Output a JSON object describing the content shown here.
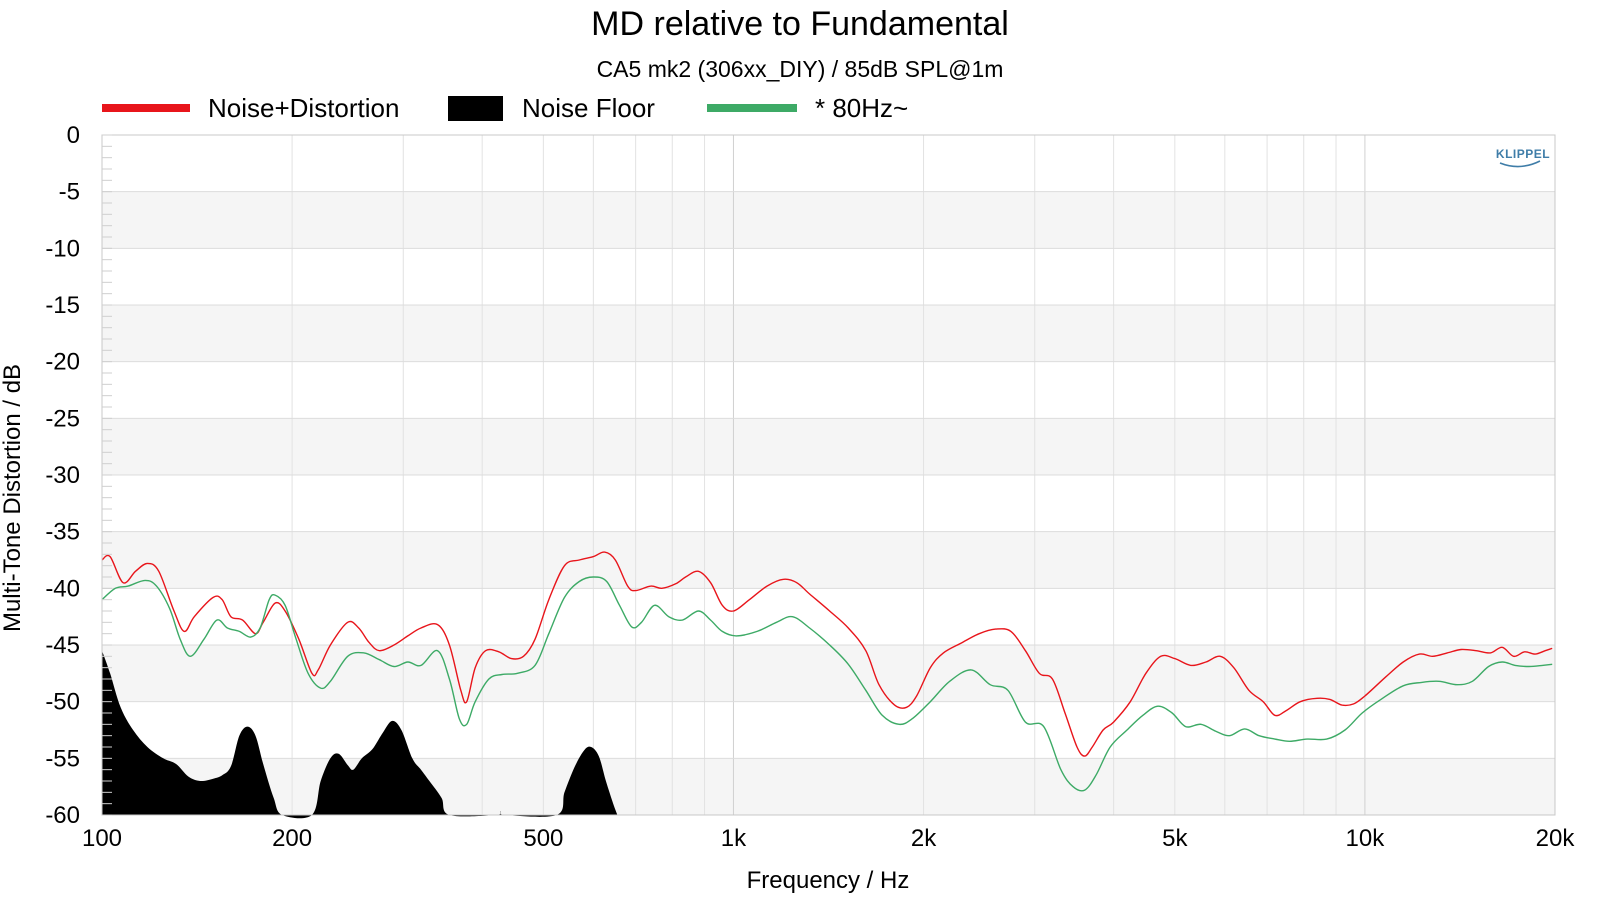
{
  "chart_data": {
    "type": "line",
    "title": "MD relative to Fundamental",
    "subtitle": "CA5 mk2 (306xx_DIY) / 85dB SPL@1m",
    "xlabel": "Frequency / Hz",
    "ylabel": "Multi-Tone Distortion / dB",
    "x_scale": "log",
    "xlim": [
      100,
      20000
    ],
    "ylim": [
      -60,
      0
    ],
    "x_ticks": [
      {
        "value": 100,
        "label": "100"
      },
      {
        "value": 200,
        "label": "200"
      },
      {
        "value": 500,
        "label": "500"
      },
      {
        "value": 1000,
        "label": "1k"
      },
      {
        "value": 2000,
        "label": "2k"
      },
      {
        "value": 5000,
        "label": "5k"
      },
      {
        "value": 10000,
        "label": "10k"
      },
      {
        "value": 20000,
        "label": "20k"
      }
    ],
    "y_ticks": [
      {
        "value": 0,
        "label": "0"
      },
      {
        "value": -5,
        "label": "-5"
      },
      {
        "value": -10,
        "label": "-10"
      },
      {
        "value": -15,
        "label": "-15"
      },
      {
        "value": -20,
        "label": "-20"
      },
      {
        "value": -25,
        "label": "-25"
      },
      {
        "value": -30,
        "label": "-30"
      },
      {
        "value": -35,
        "label": "-35"
      },
      {
        "value": -40,
        "label": "-40"
      },
      {
        "value": -45,
        "label": "-45"
      },
      {
        "value": -50,
        "label": "-50"
      },
      {
        "value": -55,
        "label": "-55"
      },
      {
        "value": -60,
        "label": "-60"
      }
    ],
    "grid": true,
    "legend_position": "top-left",
    "logo": "KLIPPEL",
    "series": [
      {
        "name": "Noise+Distortion",
        "style": "line",
        "color": "#e8151b",
        "points": [
          [
            100,
            -37.5
          ],
          [
            103,
            -37.2
          ],
          [
            108,
            -39.5
          ],
          [
            113,
            -38.5
          ],
          [
            118,
            -37.8
          ],
          [
            123,
            -38.5
          ],
          [
            130,
            -42
          ],
          [
            135,
            -43.8
          ],
          [
            140,
            -42.5
          ],
          [
            150,
            -40.8
          ],
          [
            155,
            -41
          ],
          [
            160,
            -42.5
          ],
          [
            167,
            -42.8
          ],
          [
            175,
            -44
          ],
          [
            180,
            -43
          ],
          [
            188,
            -41.3
          ],
          [
            195,
            -42
          ],
          [
            205,
            -44.5
          ],
          [
            215,
            -47.5
          ],
          [
            220,
            -47.2
          ],
          [
            230,
            -45
          ],
          [
            245,
            -43
          ],
          [
            255,
            -43.5
          ],
          [
            265,
            -44.8
          ],
          [
            275,
            -45.5
          ],
          [
            290,
            -45
          ],
          [
            305,
            -44.2
          ],
          [
            320,
            -43.5
          ],
          [
            340,
            -43.2
          ],
          [
            355,
            -45
          ],
          [
            370,
            -49
          ],
          [
            378,
            -50
          ],
          [
            390,
            -47
          ],
          [
            405,
            -45.5
          ],
          [
            425,
            -45.6
          ],
          [
            445,
            -46.2
          ],
          [
            465,
            -46
          ],
          [
            485,
            -44.5
          ],
          [
            510,
            -41
          ],
          [
            540,
            -38
          ],
          [
            570,
            -37.5
          ],
          [
            600,
            -37.2
          ],
          [
            625,
            -36.8
          ],
          [
            650,
            -37.5
          ],
          [
            680,
            -39.8
          ],
          [
            700,
            -40.2
          ],
          [
            740,
            -39.8
          ],
          [
            770,
            -40
          ],
          [
            810,
            -39.6
          ],
          [
            840,
            -39
          ],
          [
            880,
            -38.5
          ],
          [
            920,
            -39.5
          ],
          [
            960,
            -41.5
          ],
          [
            1000,
            -42
          ],
          [
            1060,
            -41
          ],
          [
            1130,
            -39.8
          ],
          [
            1200,
            -39.2
          ],
          [
            1260,
            -39.5
          ],
          [
            1320,
            -40.5
          ],
          [
            1420,
            -42
          ],
          [
            1520,
            -43.5
          ],
          [
            1620,
            -45.5
          ],
          [
            1700,
            -48.5
          ],
          [
            1800,
            -50.3
          ],
          [
            1880,
            -50.5
          ],
          [
            1950,
            -49.5
          ],
          [
            2050,
            -47
          ],
          [
            2150,
            -45.7
          ],
          [
            2300,
            -44.8
          ],
          [
            2450,
            -44
          ],
          [
            2600,
            -43.6
          ],
          [
            2750,
            -43.8
          ],
          [
            2900,
            -45.5
          ],
          [
            3050,
            -47.5
          ],
          [
            3200,
            -48
          ],
          [
            3350,
            -51
          ],
          [
            3500,
            -54
          ],
          [
            3600,
            -54.8
          ],
          [
            3700,
            -54
          ],
          [
            3850,
            -52.5
          ],
          [
            4000,
            -51.8
          ],
          [
            4250,
            -50
          ],
          [
            4500,
            -47.5
          ],
          [
            4750,
            -46
          ],
          [
            5000,
            -46.2
          ],
          [
            5300,
            -46.8
          ],
          [
            5600,
            -46.5
          ],
          [
            5900,
            -46
          ],
          [
            6200,
            -47
          ],
          [
            6550,
            -49
          ],
          [
            6900,
            -50
          ],
          [
            7200,
            -51.2
          ],
          [
            7500,
            -50.8
          ],
          [
            7900,
            -50
          ],
          [
            8400,
            -49.7
          ],
          [
            8800,
            -49.8
          ],
          [
            9200,
            -50.3
          ],
          [
            9600,
            -50.2
          ],
          [
            10000,
            -49.5
          ],
          [
            10800,
            -47.8
          ],
          [
            11500,
            -46.5
          ],
          [
            12200,
            -45.8
          ],
          [
            12800,
            -46
          ],
          [
            13500,
            -45.7
          ],
          [
            14200,
            -45.4
          ],
          [
            15000,
            -45.5
          ],
          [
            15800,
            -45.7
          ],
          [
            16500,
            -45.2
          ],
          [
            17200,
            -46
          ],
          [
            17900,
            -45.6
          ],
          [
            18600,
            -45.8
          ],
          [
            19300,
            -45.5
          ],
          [
            19800,
            -45.3
          ]
        ]
      },
      {
        "name": "Noise Floor",
        "style": "area",
        "color": "#000000",
        "points": [
          [
            100,
            -45.5
          ],
          [
            103,
            -47.5
          ],
          [
            107,
            -50.5
          ],
          [
            112,
            -52.5
          ],
          [
            118,
            -54
          ],
          [
            125,
            -55
          ],
          [
            131,
            -55.5
          ],
          [
            137,
            -56.6
          ],
          [
            143,
            -57
          ],
          [
            150,
            -56.8
          ],
          [
            155,
            -56.5
          ],
          [
            160,
            -55.7
          ],
          [
            165,
            -53
          ],
          [
            170,
            -52.2
          ],
          [
            175,
            -53
          ],
          [
            180,
            -55.5
          ],
          [
            187,
            -58.5
          ],
          [
            193,
            -60
          ],
          [
            215,
            -60
          ],
          [
            222,
            -57
          ],
          [
            230,
            -55
          ],
          [
            237,
            -54.6
          ],
          [
            245,
            -55.6
          ],
          [
            250,
            -56
          ],
          [
            258,
            -55
          ],
          [
            268,
            -54.2
          ],
          [
            278,
            -52.8
          ],
          [
            288,
            -51.7
          ],
          [
            298,
            -52.5
          ],
          [
            310,
            -55
          ],
          [
            320,
            -56
          ],
          [
            330,
            -57
          ],
          [
            345,
            -58.5
          ],
          [
            355,
            -60
          ],
          [
            420,
            -60
          ],
          [
            428,
            -59.7
          ],
          [
            436,
            -60
          ],
          [
            525,
            -60
          ],
          [
            540,
            -58
          ],
          [
            560,
            -55.8
          ],
          [
            580,
            -54.3
          ],
          [
            595,
            -54
          ],
          [
            612,
            -54.8
          ],
          [
            628,
            -57
          ],
          [
            645,
            -59
          ],
          [
            655,
            -60
          ]
        ]
      },
      {
        "name": "* 80Hz~",
        "style": "line",
        "color": "#3daa66",
        "points": [
          [
            100,
            -41
          ],
          [
            105,
            -40
          ],
          [
            110,
            -39.8
          ],
          [
            117,
            -39.3
          ],
          [
            122,
            -39.8
          ],
          [
            128,
            -41.8
          ],
          [
            133,
            -44.5
          ],
          [
            138,
            -46
          ],
          [
            145,
            -44.5
          ],
          [
            152,
            -42.8
          ],
          [
            158,
            -43.5
          ],
          [
            165,
            -43.8
          ],
          [
            172,
            -44.3
          ],
          [
            178,
            -43.5
          ],
          [
            184,
            -41
          ],
          [
            188,
            -40.6
          ],
          [
            195,
            -41.5
          ],
          [
            203,
            -44.5
          ],
          [
            212,
            -47.5
          ],
          [
            222,
            -48.8
          ],
          [
            230,
            -48.2
          ],
          [
            245,
            -46
          ],
          [
            260,
            -45.7
          ],
          [
            275,
            -46.3
          ],
          [
            290,
            -46.9
          ],
          [
            305,
            -46.5
          ],
          [
            320,
            -46.8
          ],
          [
            340,
            -45.5
          ],
          [
            355,
            -48
          ],
          [
            368,
            -51.5
          ],
          [
            378,
            -52
          ],
          [
            390,
            -50
          ],
          [
            410,
            -48
          ],
          [
            430,
            -47.6
          ],
          [
            455,
            -47.5
          ],
          [
            485,
            -46.8
          ],
          [
            510,
            -44
          ],
          [
            540,
            -40.8
          ],
          [
            570,
            -39.4
          ],
          [
            600,
            -39
          ],
          [
            630,
            -39.4
          ],
          [
            660,
            -41.5
          ],
          [
            690,
            -43.4
          ],
          [
            715,
            -43
          ],
          [
            750,
            -41.5
          ],
          [
            790,
            -42.5
          ],
          [
            830,
            -42.8
          ],
          [
            880,
            -42
          ],
          [
            920,
            -42.8
          ],
          [
            960,
            -43.8
          ],
          [
            1010,
            -44.2
          ],
          [
            1090,
            -43.8
          ],
          [
            1170,
            -43
          ],
          [
            1240,
            -42.5
          ],
          [
            1320,
            -43.5
          ],
          [
            1420,
            -45
          ],
          [
            1520,
            -46.7
          ],
          [
            1620,
            -49
          ],
          [
            1720,
            -51.2
          ],
          [
            1830,
            -52
          ],
          [
            1920,
            -51.5
          ],
          [
            2050,
            -50
          ],
          [
            2200,
            -48.2
          ],
          [
            2380,
            -47.2
          ],
          [
            2550,
            -48.5
          ],
          [
            2720,
            -49
          ],
          [
            2900,
            -51.8
          ],
          [
            3100,
            -52.2
          ],
          [
            3300,
            -56
          ],
          [
            3450,
            -57.5
          ],
          [
            3600,
            -57.8
          ],
          [
            3750,
            -56.5
          ],
          [
            3950,
            -54
          ],
          [
            4200,
            -52.5
          ],
          [
            4450,
            -51.2
          ],
          [
            4700,
            -50.4
          ],
          [
            4950,
            -51
          ],
          [
            5200,
            -52.2
          ],
          [
            5500,
            -52
          ],
          [
            5800,
            -52.6
          ],
          [
            6100,
            -53
          ],
          [
            6450,
            -52.4
          ],
          [
            6800,
            -53
          ],
          [
            7200,
            -53.3
          ],
          [
            7600,
            -53.5
          ],
          [
            8100,
            -53.3
          ],
          [
            8700,
            -53.3
          ],
          [
            9300,
            -52.5
          ],
          [
            9900,
            -51
          ],
          [
            10600,
            -49.8
          ],
          [
            11500,
            -48.6
          ],
          [
            12300,
            -48.3
          ],
          [
            13100,
            -48.2
          ],
          [
            14000,
            -48.5
          ],
          [
            14800,
            -48.2
          ],
          [
            15700,
            -46.9
          ],
          [
            16500,
            -46.5
          ],
          [
            17300,
            -46.8
          ],
          [
            18200,
            -46.9
          ],
          [
            19100,
            -46.8
          ],
          [
            19800,
            -46.7
          ]
        ]
      }
    ]
  }
}
